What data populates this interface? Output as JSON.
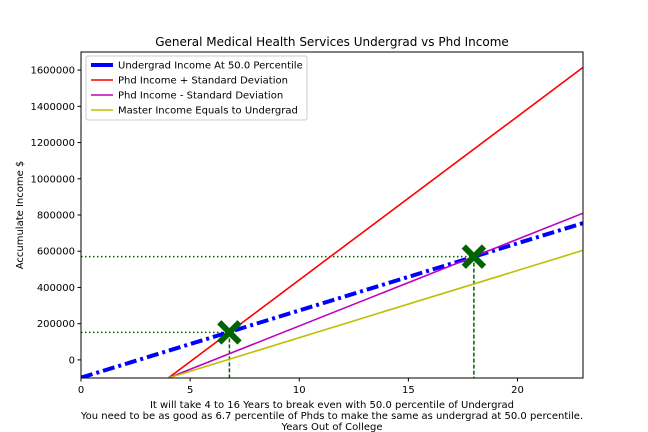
{
  "chart_data": {
    "type": "line",
    "title": "General Medical Health Services Undergrad vs Phd Income",
    "xlabel_lines": [
      "It will take 4 to 16 Years to break even with 50.0 percentile of Undergrad",
      "You need to be as good as 6.7 percentile of Phds to make the same as undergrad at 50.0 percentile.",
      "Years Out of College"
    ],
    "ylabel": "Accumulate Income $",
    "xlim": [
      0,
      23
    ],
    "ylim": [
      -100000,
      1700000
    ],
    "xticks": [
      0,
      5,
      10,
      15,
      20
    ],
    "yticks": [
      0,
      200000,
      400000,
      600000,
      800000,
      1000000,
      1200000,
      1400000,
      1600000
    ],
    "legend_position": "top-left",
    "series": [
      {
        "name": "Undergrad Income At 50.0 Percentile",
        "color": "#0000ff",
        "style": "dashdot",
        "x": [
          0,
          23
        ],
        "y": [
          -98000,
          755000
        ]
      },
      {
        "name": "Phd Income + Standard Deviation",
        "color": "#ff0000",
        "style": "solid",
        "x": [
          4,
          23
        ],
        "y": [
          -100000,
          1615000
        ]
      },
      {
        "name": "Phd Income - Standard Deviation",
        "color": "#bf00bf",
        "style": "solid",
        "x": [
          4,
          23
        ],
        "y": [
          -100000,
          810000
        ]
      },
      {
        "name": "Master Income Equals to Undergrad",
        "color": "#bfbf00",
        "style": "solid",
        "x": [
          4,
          23
        ],
        "y": [
          -100000,
          605000
        ]
      }
    ],
    "markers": [
      {
        "x": 6.8,
        "y": 152000,
        "color": "#006400"
      },
      {
        "x": 18.0,
        "y": 570000,
        "color": "#006400"
      }
    ],
    "reference_lines": [
      {
        "x": 6.8,
        "y": 152000,
        "color": "#006400"
      },
      {
        "x": 18.0,
        "y": 570000,
        "color": "#006400"
      }
    ]
  }
}
